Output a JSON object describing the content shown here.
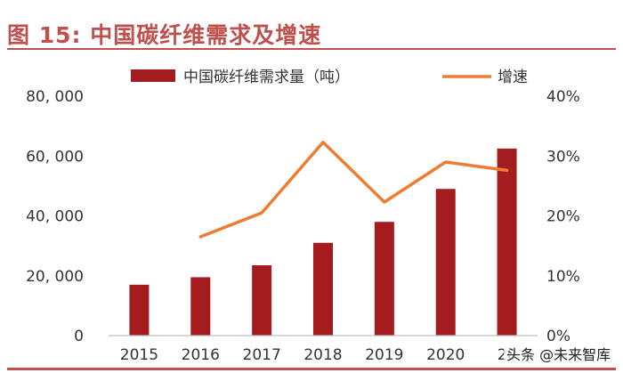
{
  "page": {
    "title": "图 15:  中国碳纤维需求及增速",
    "watermark": "头条 @未来智库"
  },
  "chart_data": {
    "type": "bar",
    "categories": [
      "2015",
      "2016",
      "2017",
      "2018",
      "2019",
      "2020",
      "2021"
    ],
    "category_labels": [
      "2015",
      "2016",
      "2017",
      "2018",
      "2019",
      "2020",
      "20"
    ],
    "series": [
      {
        "name": "中国碳纤维需求量（吨）",
        "type": "bar",
        "axis": "left",
        "color": "#a51c1e",
        "values": [
          17000,
          19500,
          23500,
          31000,
          38000,
          49000,
          62500
        ]
      },
      {
        "name": "增速",
        "type": "line",
        "axis": "right",
        "color": "#ed7d31",
        "values": [
          null,
          16.5,
          20.5,
          32.3,
          22.3,
          29.0,
          27.6
        ]
      }
    ],
    "y_left": {
      "ylim": [
        0,
        80000
      ],
      "ticks": [
        0,
        20000,
        40000,
        60000,
        80000
      ],
      "tick_labels": [
        "0",
        "20, 000",
        "40, 000",
        "60, 000",
        "80, 000"
      ]
    },
    "y_right": {
      "ylim": [
        0,
        40
      ],
      "ticks": [
        0,
        10,
        20,
        30,
        40
      ],
      "tick_labels": [
        "0%",
        "10%",
        "20%",
        "30%",
        "40%"
      ]
    },
    "grid": false,
    "legend_position": "top"
  }
}
